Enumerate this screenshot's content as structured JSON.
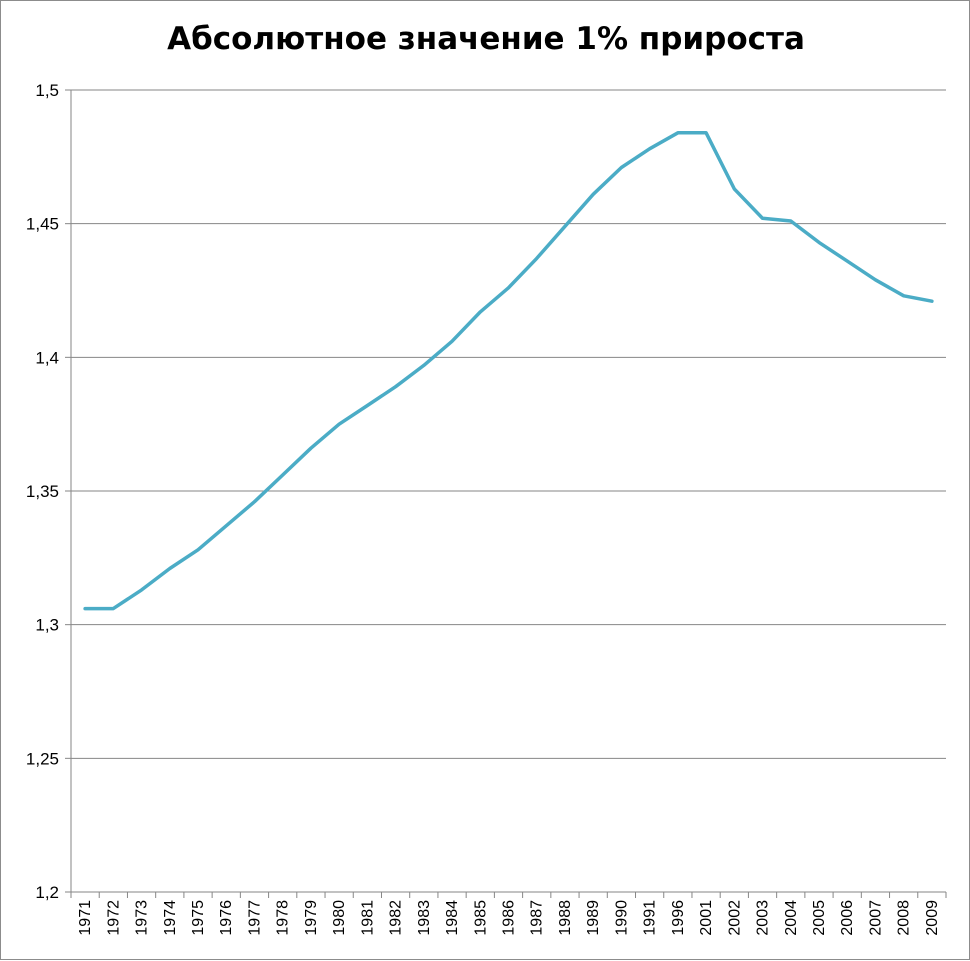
{
  "chart_data": {
    "type": "line",
    "title": "Абсолютное значение 1% прироста",
    "xlabel": "",
    "ylabel": "",
    "ylim": [
      1.2,
      1.5
    ],
    "y_ticks": [
      "1,2",
      "1,25",
      "1,3",
      "1,35",
      "1,4",
      "1,45",
      "1,5"
    ],
    "y_tick_values": [
      1.2,
      1.25,
      1.3,
      1.35,
      1.4,
      1.45,
      1.5
    ],
    "categories": [
      "1971",
      "1972",
      "1973",
      "1974",
      "1975",
      "1976",
      "1977",
      "1978",
      "1979",
      "1980",
      "1981",
      "1982",
      "1983",
      "1984",
      "1985",
      "1986",
      "1987",
      "1988",
      "1989",
      "1990",
      "1991",
      "1996",
      "2001",
      "2002",
      "2003",
      "2004",
      "2005",
      "2006",
      "2007",
      "2008",
      "2009"
    ],
    "series": [
      {
        "name": "",
        "color": "#4bacc6",
        "values": [
          1.306,
          1.306,
          1.313,
          1.321,
          1.328,
          1.337,
          1.346,
          1.356,
          1.366,
          1.375,
          1.382,
          1.389,
          1.397,
          1.406,
          1.417,
          1.426,
          1.437,
          1.449,
          1.461,
          1.471,
          1.478,
          1.484,
          1.484,
          1.463,
          1.452,
          1.451,
          1.443,
          1.436,
          1.429,
          1.423,
          1.421
        ]
      }
    ],
    "grid": true,
    "legend": "none"
  }
}
